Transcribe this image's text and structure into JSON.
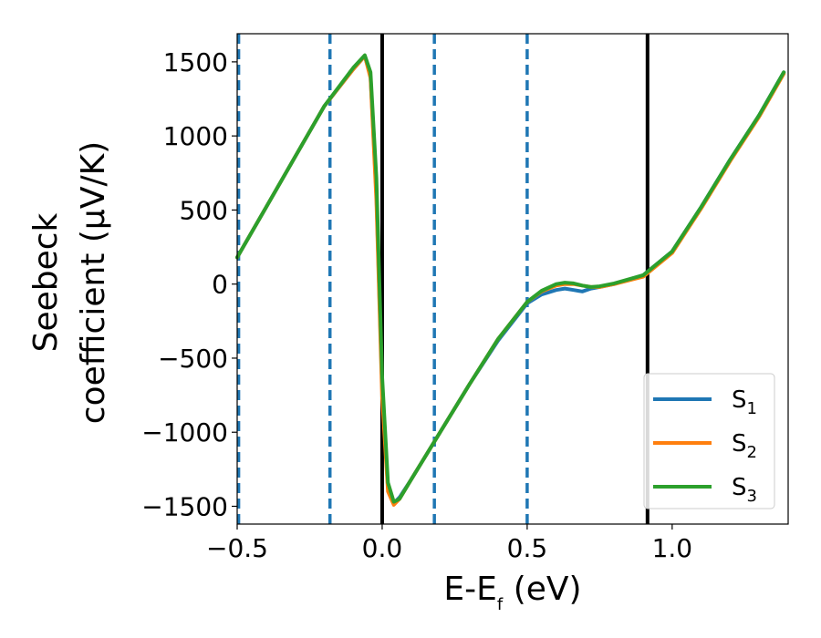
{
  "chart_data": {
    "type": "line",
    "xlabel": "E-E",
    "xlabel_sub": "f",
    "xlabel_unit": " (eV)",
    "ylabel_line1": "Seebeck",
    "ylabel_line2": "coefficient  (μV/K)",
    "xlim": [
      -0.5,
      1.4
    ],
    "ylim": [
      -1620,
      1690
    ],
    "x_ticks": [
      -0.5,
      0.0,
      0.5,
      1.0
    ],
    "x_tick_labels": [
      "−0.5",
      "0.0",
      "0.5",
      "1.0"
    ],
    "y_ticks": [
      -1500,
      -1000,
      -500,
      0,
      500,
      1000,
      1500
    ],
    "y_tick_labels": [
      "−1500",
      "−1000",
      "−500",
      "0",
      "500",
      "1000",
      "1500"
    ],
    "grid": false,
    "legend_position": "bottom-right",
    "colors": {
      "S1": "#1f77b4",
      "S2": "#ff7f0e",
      "S3": "#2ca02c",
      "ref_lines": "#000000",
      "dashed_lines": "#1f77b4"
    },
    "vertical_lines_solid": [
      0.0,
      0.915
    ],
    "vertical_lines_dashed": [
      -0.495,
      -0.18,
      0.18,
      0.5
    ],
    "series": [
      {
        "name": "S",
        "sub": "1",
        "color": "#1f77b4",
        "x": [
          -0.5,
          -0.4,
          -0.3,
          -0.2,
          -0.1,
          -0.06,
          -0.04,
          -0.02,
          0.0,
          0.02,
          0.04,
          0.06,
          0.1,
          0.2,
          0.3,
          0.4,
          0.5,
          0.55,
          0.6,
          0.63,
          0.66,
          0.69,
          0.72,
          0.75,
          0.8,
          0.9,
          1.0,
          1.1,
          1.2,
          1.3,
          1.385
        ],
        "y": [
          180,
          520,
          860,
          1200,
          1450,
          1540,
          1400,
          600,
          -700,
          -1380,
          -1480,
          -1440,
          -1320,
          -1000,
          -680,
          -380,
          -130,
          -70,
          -40,
          -30,
          -40,
          -50,
          -30,
          -20,
          0,
          60,
          220,
          520,
          840,
          1140,
          1430
        ]
      },
      {
        "name": "S",
        "sub": "2",
        "color": "#ff7f0e",
        "x": [
          -0.5,
          -0.4,
          -0.3,
          -0.2,
          -0.1,
          -0.06,
          -0.04,
          -0.02,
          0.0,
          0.02,
          0.04,
          0.06,
          0.1,
          0.2,
          0.3,
          0.4,
          0.5,
          0.55,
          0.6,
          0.63,
          0.66,
          0.69,
          0.72,
          0.75,
          0.8,
          0.9,
          1.0,
          1.1,
          1.2,
          1.3,
          1.385
        ],
        "y": [
          180,
          520,
          860,
          1200,
          1450,
          1540,
          1390,
          560,
          -760,
          -1400,
          -1490,
          -1450,
          -1320,
          -1000,
          -680,
          -370,
          -120,
          -50,
          -10,
          0,
          0,
          -10,
          -20,
          -20,
          0,
          50,
          210,
          510,
          830,
          1130,
          1420
        ]
      },
      {
        "name": "S",
        "sub": "3",
        "color": "#2ca02c",
        "x": [
          -0.5,
          -0.4,
          -0.3,
          -0.2,
          -0.1,
          -0.06,
          -0.04,
          -0.02,
          0.0,
          0.02,
          0.04,
          0.06,
          0.1,
          0.2,
          0.3,
          0.4,
          0.5,
          0.55,
          0.6,
          0.63,
          0.66,
          0.69,
          0.72,
          0.75,
          0.8,
          0.9,
          1.0,
          1.1,
          1.2,
          1.3,
          1.385
        ],
        "y": [
          180,
          520,
          860,
          1200,
          1460,
          1545,
          1430,
          720,
          -620,
          -1340,
          -1470,
          -1450,
          -1320,
          -1000,
          -680,
          -370,
          -120,
          -45,
          0,
          10,
          5,
          -10,
          -20,
          -15,
          5,
          60,
          220,
          520,
          840,
          1140,
          1430
        ]
      }
    ]
  }
}
